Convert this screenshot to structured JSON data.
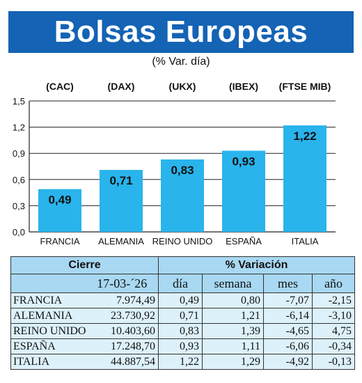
{
  "title": "Bolsas Europeas",
  "subtitle": "(% Var. día)",
  "chart_data": {
    "type": "bar",
    "index_labels": [
      "(CAC)",
      "(DAX)",
      "(UKX)",
      "(IBEX)",
      "(FTSE MIB)"
    ],
    "categories": [
      "FRANCIA",
      "ALEMANIA",
      "REINO UNIDO",
      "ESPAÑA",
      "ITALIA"
    ],
    "values": [
      0.49,
      0.71,
      0.83,
      0.93,
      1.22
    ],
    "value_labels": [
      "0,49",
      "0,71",
      "0,83",
      "0,93",
      "1,22"
    ],
    "ylim": [
      0,
      1.5
    ],
    "yticks": [
      0,
      0.3,
      0.6,
      0.9,
      1.2,
      1.5
    ],
    "ytick_labels": [
      "0,0",
      "0,3",
      "0,6",
      "0,9",
      "1,2",
      "1,5"
    ],
    "grid": true,
    "bar_color": "#29b4ec"
  },
  "table": {
    "header_close": "Cierre",
    "header_variation": "% Variación",
    "date": "17-03-´26",
    "col_day": "día",
    "col_week": "semana",
    "col_month": "mes",
    "col_year": "año",
    "rows": [
      {
        "country": "FRANCIA",
        "close": "7.974,49",
        "day": "0,49",
        "week": "0,80",
        "month": "-7,07",
        "year": "-2,15"
      },
      {
        "country": "ALEMANIA",
        "close": "23.730,92",
        "day": "0,71",
        "week": "1,21",
        "month": "-6,14",
        "year": "-3,10"
      },
      {
        "country": "REINO UNIDO",
        "close": "10.403,60",
        "day": "0,83",
        "week": "1,39",
        "month": "-4,65",
        "year": "4,75"
      },
      {
        "country": "ESPAÑA",
        "close": "17.248,70",
        "day": "0,93",
        "week": "1,11",
        "month": "-6,06",
        "year": "-0,34"
      },
      {
        "country": "ITALIA",
        "close": "44.887,54",
        "day": "1,22",
        "week": "1,29",
        "month": "-4,92",
        "year": "-0,13"
      }
    ]
  },
  "colors": {
    "banner": "#1463b4",
    "table_header": "#a8d8f2",
    "table_body": "#ddf1fb"
  }
}
